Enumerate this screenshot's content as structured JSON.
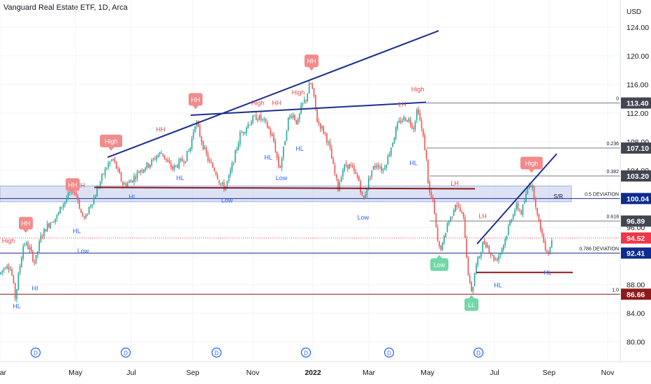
{
  "header": {
    "title": "Vanguard Real Estate ETF, 1D, Arca"
  },
  "colors": {
    "up": "#26a69a",
    "down": "#ef5350",
    "grid": "#f0f3fa",
    "trend": "#1b2f8f",
    "sr_line": "#8b1a1a",
    "zone": "rgba(177,190,230,0.45)",
    "fib": "#787b86",
    "hl_text": "#2962ff",
    "hh_text": "#e04848",
    "marker_red": "#f28b8b",
    "marker_green": "#74d7a8",
    "dividend": "#2962ff"
  },
  "chart_data": {
    "type": "candlestick",
    "title": "Vanguard Real Estate ETF, 1D, Arca",
    "y_axis": {
      "unit": "USD",
      "range": [
        78,
        126
      ],
      "ticks": [
        "124.00",
        "120.00",
        "116.00",
        "112.00",
        "108.00",
        "104.00",
        "100.00",
        "96.00",
        "92.00",
        "88.00",
        "84.00",
        "80.00"
      ]
    },
    "x_axis": {
      "ticks": [
        "Mar",
        "May",
        "Jul",
        "Sep",
        "Nov",
        "2022",
        "Mar",
        "May",
        "Jul",
        "Sep",
        "Nov"
      ]
    },
    "price_badges": [
      {
        "value": 113.4,
        "text": "113.40",
        "color": "#434651"
      },
      {
        "value": 107.1,
        "text": "107.10",
        "color": "#434651"
      },
      {
        "value": 103.2,
        "text": "103.20",
        "color": "#434651"
      },
      {
        "value": 100.04,
        "text": "100.04",
        "color": "#0d2b8c"
      },
      {
        "value": 96.89,
        "text": "96.89",
        "color": "#434651"
      },
      {
        "value": 94.52,
        "text": "94.52",
        "color": "#f23645"
      },
      {
        "value": 92.41,
        "text": "92.41",
        "color": "#0d2b8c"
      },
      {
        "value": 86.66,
        "text": "86.66",
        "color": "#8b1a1a"
      }
    ],
    "fib_levels": [
      {
        "ratio": "0",
        "price": 113.4
      },
      {
        "ratio": "0.236",
        "price": 107.1
      },
      {
        "ratio": "0.382",
        "price": 103.2
      },
      {
        "ratio": "0.5 DEVIATION",
        "price": 100.04
      },
      {
        "ratio": "0.618",
        "price": 96.89
      },
      {
        "ratio": "0.786 DEVIATION",
        "price": 92.41
      },
      {
        "ratio": "1.0",
        "price": 86.66
      }
    ],
    "sr_zone": {
      "label": "S/R",
      "low": 99.6,
      "high": 101.8
    },
    "current_price": 94.52,
    "price_path": [
      [
        0,
        89.5
      ],
      [
        10,
        91
      ],
      [
        16,
        90
      ],
      [
        22,
        86
      ],
      [
        26,
        89
      ],
      [
        34,
        94
      ],
      [
        42,
        93
      ],
      [
        50,
        91
      ],
      [
        58,
        94.5
      ],
      [
        66,
        96
      ],
      [
        74,
        97
      ],
      [
        82,
        97.5
      ],
      [
        88,
        99
      ],
      [
        92,
        99.5
      ],
      [
        98,
        100.5
      ],
      [
        104,
        101.3
      ],
      [
        110,
        100.5
      ],
      [
        116,
        98
      ],
      [
        122,
        97
      ],
      [
        128,
        99
      ],
      [
        134,
        100
      ],
      [
        140,
        101.5
      ],
      [
        148,
        103.5
      ],
      [
        156,
        105
      ],
      [
        162,
        105.5
      ],
      [
        168,
        104
      ],
      [
        176,
        102
      ],
      [
        184,
        102.2
      ],
      [
        192,
        103
      ],
      [
        200,
        104
      ],
      [
        208,
        104.5
      ],
      [
        216,
        105
      ],
      [
        224,
        106
      ],
      [
        232,
        106.5
      ],
      [
        240,
        105
      ],
      [
        248,
        104.2
      ],
      [
        256,
        105
      ],
      [
        264,
        105.5
      ],
      [
        272,
        107
      ],
      [
        280,
        111
      ],
      [
        286,
        109
      ],
      [
        292,
        107
      ],
      [
        300,
        105
      ],
      [
        308,
        104
      ],
      [
        316,
        102
      ],
      [
        322,
        101.5
      ],
      [
        328,
        103
      ],
      [
        336,
        106
      ],
      [
        344,
        109
      ],
      [
        352,
        110
      ],
      [
        360,
        111
      ],
      [
        368,
        111.5
      ],
      [
        376,
        111
      ],
      [
        384,
        110
      ],
      [
        392,
        108
      ],
      [
        400,
        104
      ],
      [
        406,
        107
      ],
      [
        412,
        111
      ],
      [
        418,
        112
      ],
      [
        426,
        110.5
      ],
      [
        432,
        113
      ],
      [
        438,
        114
      ],
      [
        444,
        116.3
      ],
      [
        448,
        115
      ],
      [
        454,
        111
      ],
      [
        460,
        110
      ],
      [
        466,
        109
      ],
      [
        472,
        107
      ],
      [
        478,
        104
      ],
      [
        484,
        101.5
      ],
      [
        490,
        104
      ],
      [
        496,
        104.8
      ],
      [
        502,
        104.5
      ],
      [
        508,
        103.5
      ],
      [
        514,
        102.5
      ],
      [
        520,
        99.5
      ],
      [
        526,
        102
      ],
      [
        532,
        104
      ],
      [
        540,
        105
      ],
      [
        548,
        104
      ],
      [
        556,
        106
      ],
      [
        562,
        108
      ],
      [
        568,
        110
      ],
      [
        574,
        111
      ],
      [
        580,
        111.3
      ],
      [
        586,
        111
      ],
      [
        592,
        110
      ],
      [
        598,
        113
      ],
      [
        602,
        110.5
      ],
      [
        606,
        108.5
      ],
      [
        610,
        106
      ],
      [
        614,
        101
      ],
      [
        620,
        99.5
      ],
      [
        624,
        96
      ],
      [
        628,
        93
      ],
      [
        634,
        93.5
      ],
      [
        640,
        96.5
      ],
      [
        646,
        97.5
      ],
      [
        652,
        99.5
      ],
      [
        658,
        98.5
      ],
      [
        664,
        97
      ],
      [
        668,
        92
      ],
      [
        672,
        88
      ],
      [
        676,
        87
      ],
      [
        680,
        90
      ],
      [
        686,
        92
      ],
      [
        692,
        94
      ],
      [
        698,
        93.5
      ],
      [
        704,
        92
      ],
      [
        710,
        91.5
      ],
      [
        716,
        92.5
      ],
      [
        722,
        94
      ],
      [
        728,
        96
      ],
      [
        734,
        98
      ],
      [
        740,
        99
      ],
      [
        746,
        98
      ],
      [
        752,
        100
      ],
      [
        758,
        102.5
      ],
      [
        762,
        101.5
      ],
      [
        766,
        100
      ],
      [
        770,
        97
      ],
      [
        774,
        96
      ],
      [
        778,
        94
      ],
      [
        782,
        93
      ],
      [
        786,
        92.4
      ],
      [
        790,
        94.5
      ]
    ],
    "trendlines": [
      {
        "from": [
          154,
          105.8
        ],
        "to": [
          628,
          123.5
        ]
      },
      {
        "from": [
          273,
          111.7
        ],
        "to": [
          610,
          113.5
        ]
      },
      {
        "from": [
          683,
          93.7
        ],
        "to": [
          797,
          106.3
        ]
      }
    ],
    "sr_lines": [
      {
        "from": [
          135,
          101.6
        ],
        "to": [
          680,
          101.4
        ]
      },
      {
        "from": [
          682,
          89.7
        ],
        "to": [
          820,
          89.7
        ]
      }
    ],
    "labels": [
      {
        "text": "High",
        "x": 12,
        "y": 93.8,
        "color": "#e04848"
      },
      {
        "text": "Low",
        "x": 119,
        "y": 92.4,
        "color": "#2962ff"
      },
      {
        "text": "HL",
        "x": 110,
        "y": 95.2,
        "color": "#2962ff"
      },
      {
        "text": "HL",
        "x": 24,
        "y": 84.7,
        "color": "#2962ff"
      },
      {
        "text": "HI",
        "x": 50,
        "y": 87.2,
        "color": "#2962ff"
      },
      {
        "text": "HH",
        "x": 115,
        "y": 101.6,
        "color": "#e04848"
      },
      {
        "text": "HL",
        "x": 190,
        "y": 100.0,
        "color": "#2962ff"
      },
      {
        "text": "HH",
        "x": 230,
        "y": 109.4,
        "color": "#e04848"
      },
      {
        "text": "HL",
        "x": 258,
        "y": 102.6,
        "color": "#2962ff"
      },
      {
        "text": "Low",
        "x": 325,
        "y": 99.5,
        "color": "#2962ff"
      },
      {
        "text": "HL",
        "x": 384,
        "y": 105.5,
        "color": "#2962ff"
      },
      {
        "text": "Low",
        "x": 403,
        "y": 102.6,
        "color": "#2962ff"
      },
      {
        "text": "High",
        "x": 369,
        "y": 113.1,
        "color": "#e04848"
      },
      {
        "text": "HH",
        "x": 396,
        "y": 113.1,
        "color": "#e04848"
      },
      {
        "text": "High",
        "x": 427,
        "y": 114.6,
        "color": "#e04848"
      },
      {
        "text": "HL",
        "x": 429,
        "y": 106.7,
        "color": "#2962ff"
      },
      {
        "text": "Low",
        "x": 520,
        "y": 97.1,
        "color": "#2962ff"
      },
      {
        "text": "High",
        "x": 598,
        "y": 115.0,
        "color": "#e04848"
      },
      {
        "text": "LH",
        "x": 576,
        "y": 112.9,
        "color": "#e04848"
      },
      {
        "text": "HL",
        "x": 592,
        "y": 104.7,
        "color": "#2962ff"
      },
      {
        "text": "LH",
        "x": 651,
        "y": 101.9,
        "color": "#e04848"
      },
      {
        "text": "LH",
        "x": 691,
        "y": 97.3,
        "color": "#e04848"
      },
      {
        "text": "HL",
        "x": 713,
        "y": 87.6,
        "color": "#2962ff"
      },
      {
        "text": "HL",
        "x": 784,
        "y": 89.4,
        "color": "#2962ff"
      }
    ],
    "markers": [
      {
        "text": "HH",
        "x": 37,
        "y": 96.6,
        "color": "#f28b8b"
      },
      {
        "text": "HH",
        "x": 104,
        "y": 102.0,
        "color": "#f28b8b"
      },
      {
        "text": "High",
        "x": 159,
        "y": 108.1,
        "color": "#f28b8b"
      },
      {
        "text": "HH",
        "x": 280,
        "y": 113.9,
        "color": "#f28b8b"
      },
      {
        "text": "HH",
        "x": 446,
        "y": 119.3,
        "color": "#f28b8b"
      },
      {
        "text": "High",
        "x": 761,
        "y": 105.0,
        "color": "#f28b8b"
      },
      {
        "text": "Low",
        "x": 629,
        "y": 90.8,
        "color": "#74d7a8"
      },
      {
        "text": "LL",
        "x": 675,
        "y": 85.2,
        "color": "#74d7a8"
      }
    ],
    "dividends": {
      "label": "D",
      "x": [
        51,
        180,
        310,
        438,
        557,
        685
      ]
    }
  }
}
